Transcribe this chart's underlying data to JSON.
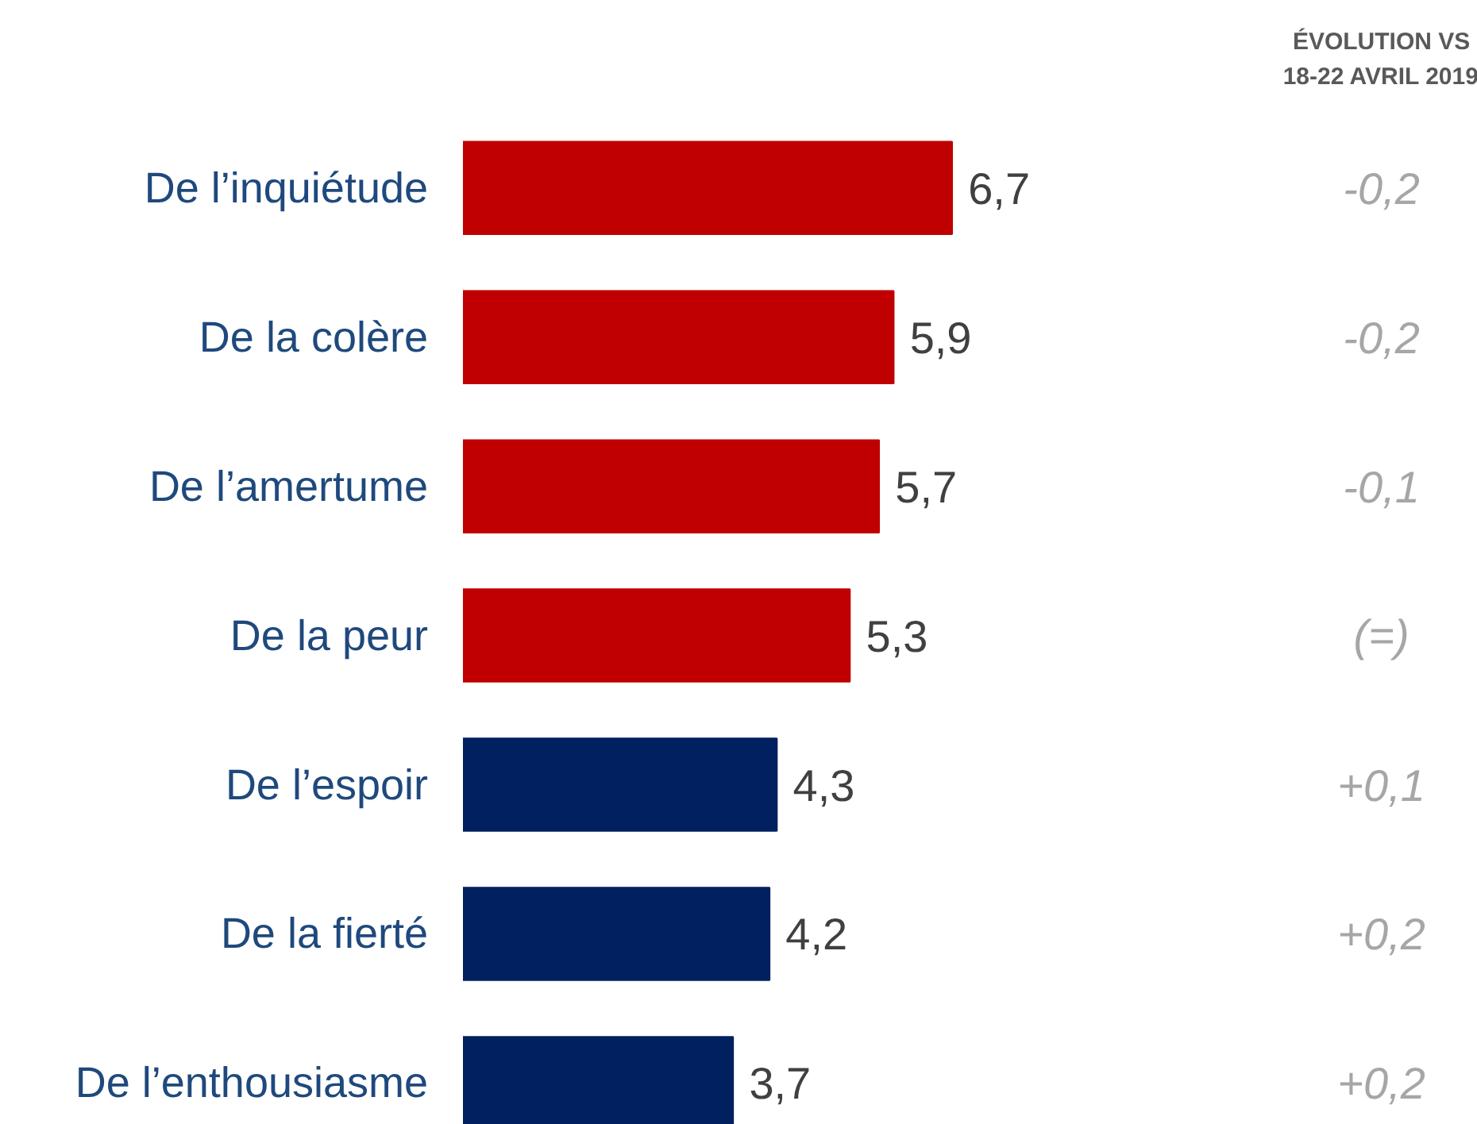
{
  "chart_data": {
    "type": "bar",
    "orientation": "horizontal",
    "categories": [
      "De l’inquiétude",
      "De la colère",
      "De l’amertume",
      "De la peur",
      "De l’espoir",
      "De la fierté",
      "De l’enthousiasme"
    ],
    "values": [
      6.7,
      5.9,
      5.7,
      5.3,
      4.3,
      4.2,
      3.7
    ],
    "value_labels": [
      "6,7",
      "5,9",
      "5,7",
      "5,3",
      "4,3",
      "4,2",
      "3,7"
    ],
    "colors": [
      "#c00000",
      "#c00000",
      "#c00000",
      "#c00000",
      "#002060",
      "#002060",
      "#002060"
    ],
    "annotations": [
      "ÉVOLUTION VS\n18-22 AVRIL 2019",
      "-0,2",
      "-0,2",
      "-0,1",
      "(=)",
      "+0,1",
      "+0,2",
      "+0,2"
    ]
  }
}
